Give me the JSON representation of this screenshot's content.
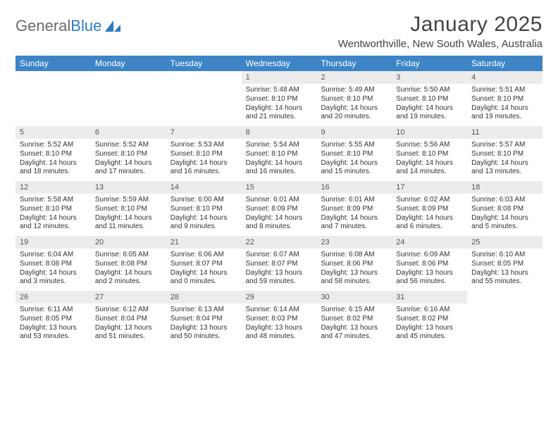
{
  "brand": {
    "part1": "General",
    "part2": "Blue"
  },
  "title": "January 2025",
  "location": "Wentworthville, New South Wales, Australia",
  "colors": {
    "header_bg": "#3d85c6",
    "header_text": "#ffffff",
    "daynum_bg": "#ececec",
    "brand_gray": "#6a6a6a",
    "brand_blue": "#2b7bbf",
    "text": "#333333"
  },
  "dow": [
    "Sunday",
    "Monday",
    "Tuesday",
    "Wednesday",
    "Thursday",
    "Friday",
    "Saturday"
  ],
  "weeks": [
    [
      {
        "empty": true
      },
      {
        "empty": true
      },
      {
        "empty": true
      },
      {
        "day": "1",
        "sunrise": "5:48 AM",
        "sunset": "8:10 PM",
        "daylight": "14 hours and 21 minutes."
      },
      {
        "day": "2",
        "sunrise": "5:49 AM",
        "sunset": "8:10 PM",
        "daylight": "14 hours and 20 minutes."
      },
      {
        "day": "3",
        "sunrise": "5:50 AM",
        "sunset": "8:10 PM",
        "daylight": "14 hours and 19 minutes."
      },
      {
        "day": "4",
        "sunrise": "5:51 AM",
        "sunset": "8:10 PM",
        "daylight": "14 hours and 19 minutes."
      }
    ],
    [
      {
        "day": "5",
        "sunrise": "5:52 AM",
        "sunset": "8:10 PM",
        "daylight": "14 hours and 18 minutes."
      },
      {
        "day": "6",
        "sunrise": "5:52 AM",
        "sunset": "8:10 PM",
        "daylight": "14 hours and 17 minutes."
      },
      {
        "day": "7",
        "sunrise": "5:53 AM",
        "sunset": "8:10 PM",
        "daylight": "14 hours and 16 minutes."
      },
      {
        "day": "8",
        "sunrise": "5:54 AM",
        "sunset": "8:10 PM",
        "daylight": "14 hours and 16 minutes."
      },
      {
        "day": "9",
        "sunrise": "5:55 AM",
        "sunset": "8:10 PM",
        "daylight": "14 hours and 15 minutes."
      },
      {
        "day": "10",
        "sunrise": "5:56 AM",
        "sunset": "8:10 PM",
        "daylight": "14 hours and 14 minutes."
      },
      {
        "day": "11",
        "sunrise": "5:57 AM",
        "sunset": "8:10 PM",
        "daylight": "14 hours and 13 minutes."
      }
    ],
    [
      {
        "day": "12",
        "sunrise": "5:58 AM",
        "sunset": "8:10 PM",
        "daylight": "14 hours and 12 minutes."
      },
      {
        "day": "13",
        "sunrise": "5:59 AM",
        "sunset": "8:10 PM",
        "daylight": "14 hours and 11 minutes."
      },
      {
        "day": "14",
        "sunrise": "6:00 AM",
        "sunset": "8:10 PM",
        "daylight": "14 hours and 9 minutes."
      },
      {
        "day": "15",
        "sunrise": "6:01 AM",
        "sunset": "8:09 PM",
        "daylight": "14 hours and 8 minutes."
      },
      {
        "day": "16",
        "sunrise": "6:01 AM",
        "sunset": "8:09 PM",
        "daylight": "14 hours and 7 minutes."
      },
      {
        "day": "17",
        "sunrise": "6:02 AM",
        "sunset": "8:09 PM",
        "daylight": "14 hours and 6 minutes."
      },
      {
        "day": "18",
        "sunrise": "6:03 AM",
        "sunset": "8:08 PM",
        "daylight": "14 hours and 5 minutes."
      }
    ],
    [
      {
        "day": "19",
        "sunrise": "6:04 AM",
        "sunset": "8:08 PM",
        "daylight": "14 hours and 3 minutes."
      },
      {
        "day": "20",
        "sunrise": "6:05 AM",
        "sunset": "8:08 PM",
        "daylight": "14 hours and 2 minutes."
      },
      {
        "day": "21",
        "sunrise": "6:06 AM",
        "sunset": "8:07 PM",
        "daylight": "14 hours and 0 minutes."
      },
      {
        "day": "22",
        "sunrise": "6:07 AM",
        "sunset": "8:07 PM",
        "daylight": "13 hours and 59 minutes."
      },
      {
        "day": "23",
        "sunrise": "6:08 AM",
        "sunset": "8:06 PM",
        "daylight": "13 hours and 58 minutes."
      },
      {
        "day": "24",
        "sunrise": "6:09 AM",
        "sunset": "8:06 PM",
        "daylight": "13 hours and 56 minutes."
      },
      {
        "day": "25",
        "sunrise": "6:10 AM",
        "sunset": "8:05 PM",
        "daylight": "13 hours and 55 minutes."
      }
    ],
    [
      {
        "day": "26",
        "sunrise": "6:11 AM",
        "sunset": "8:05 PM",
        "daylight": "13 hours and 53 minutes."
      },
      {
        "day": "27",
        "sunrise": "6:12 AM",
        "sunset": "8:04 PM",
        "daylight": "13 hours and 51 minutes."
      },
      {
        "day": "28",
        "sunrise": "6:13 AM",
        "sunset": "8:04 PM",
        "daylight": "13 hours and 50 minutes."
      },
      {
        "day": "29",
        "sunrise": "6:14 AM",
        "sunset": "8:03 PM",
        "daylight": "13 hours and 48 minutes."
      },
      {
        "day": "30",
        "sunrise": "6:15 AM",
        "sunset": "8:02 PM",
        "daylight": "13 hours and 47 minutes."
      },
      {
        "day": "31",
        "sunrise": "6:16 AM",
        "sunset": "8:02 PM",
        "daylight": "13 hours and 45 minutes."
      },
      {
        "empty": true
      }
    ]
  ],
  "labels": {
    "sunrise": "Sunrise:",
    "sunset": "Sunset:",
    "daylight": "Daylight:"
  }
}
